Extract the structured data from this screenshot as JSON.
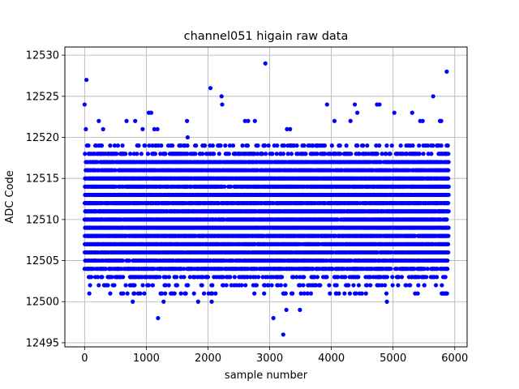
{
  "chart_data": {
    "type": "scatter",
    "title": "channel051 higain raw data",
    "xlabel": "sample number",
    "ylabel": "ADC Code",
    "xlim": [
      -320,
      6200
    ],
    "ylim": [
      12494.5,
      12531
    ],
    "xticks": [
      0,
      1000,
      2000,
      3000,
      4000,
      5000,
      6000
    ],
    "yticks": [
      12495,
      12500,
      12505,
      12510,
      12515,
      12520,
      12525,
      12530
    ],
    "grid": true,
    "marker_color": "#0000ff",
    "series": [
      {
        "name": "",
        "n_samples": 5900,
        "y_range": [
          12501,
          12519
        ],
        "band_density": [
          [
            12519,
            0.2
          ],
          [
            12518,
            0.45
          ],
          [
            12517,
            0.8
          ],
          [
            12516,
            0.8
          ],
          [
            12515,
            0.95
          ],
          [
            12514,
            0.8
          ],
          [
            12513,
            0.95
          ],
          [
            12512,
            0.8
          ],
          [
            12511,
            0.95
          ],
          [
            12510,
            0.85
          ],
          [
            12509,
            0.95
          ],
          [
            12508,
            0.85
          ],
          [
            12507,
            0.9
          ],
          [
            12506,
            0.8
          ],
          [
            12505,
            0.75
          ],
          [
            12504,
            0.65
          ],
          [
            12503,
            0.35
          ],
          [
            12502,
            0.18
          ],
          [
            12501,
            0.08
          ]
        ],
        "outliers": [
          [
            0,
            12524
          ],
          [
            30,
            12527
          ],
          [
            20,
            12521
          ],
          [
            230,
            12522
          ],
          [
            300,
            12521
          ],
          [
            680,
            12522
          ],
          [
            820,
            12522
          ],
          [
            940,
            12521
          ],
          [
            1040,
            12523
          ],
          [
            1080,
            12523
          ],
          [
            1130,
            12521
          ],
          [
            1180,
            12521
          ],
          [
            1660,
            12522
          ],
          [
            1670,
            12520
          ],
          [
            2040,
            12526
          ],
          [
            2220,
            12525
          ],
          [
            2230,
            12524
          ],
          [
            2600,
            12522
          ],
          [
            2650,
            12522
          ],
          [
            2760,
            12522
          ],
          [
            2930,
            12529
          ],
          [
            3280,
            12521
          ],
          [
            3330,
            12521
          ],
          [
            3930,
            12524
          ],
          [
            4050,
            12522
          ],
          [
            4310,
            12522
          ],
          [
            4380,
            12524
          ],
          [
            4420,
            12523
          ],
          [
            4740,
            12524
          ],
          [
            4780,
            12524
          ],
          [
            5020,
            12523
          ],
          [
            5310,
            12523
          ],
          [
            5440,
            12522
          ],
          [
            5480,
            12522
          ],
          [
            5650,
            12525
          ],
          [
            5760,
            12522
          ],
          [
            5780,
            12522
          ],
          [
            5870,
            12528
          ],
          [
            780,
            12500
          ],
          [
            1190,
            12498
          ],
          [
            1280,
            12500
          ],
          [
            1840,
            12500
          ],
          [
            2060,
            12500
          ],
          [
            2910,
            12502
          ],
          [
            2980,
            12502
          ],
          [
            3060,
            12498
          ],
          [
            3220,
            12496
          ],
          [
            3270,
            12499
          ],
          [
            3490,
            12499
          ],
          [
            4900,
            12500
          ],
          [
            3560,
            12501
          ],
          [
            4080,
            12501
          ],
          [
            4300,
            12501
          ],
          [
            4380,
            12501
          ],
          [
            4560,
            12501
          ],
          [
            5400,
            12501
          ],
          [
            5850,
            12501
          ]
        ]
      }
    ]
  }
}
